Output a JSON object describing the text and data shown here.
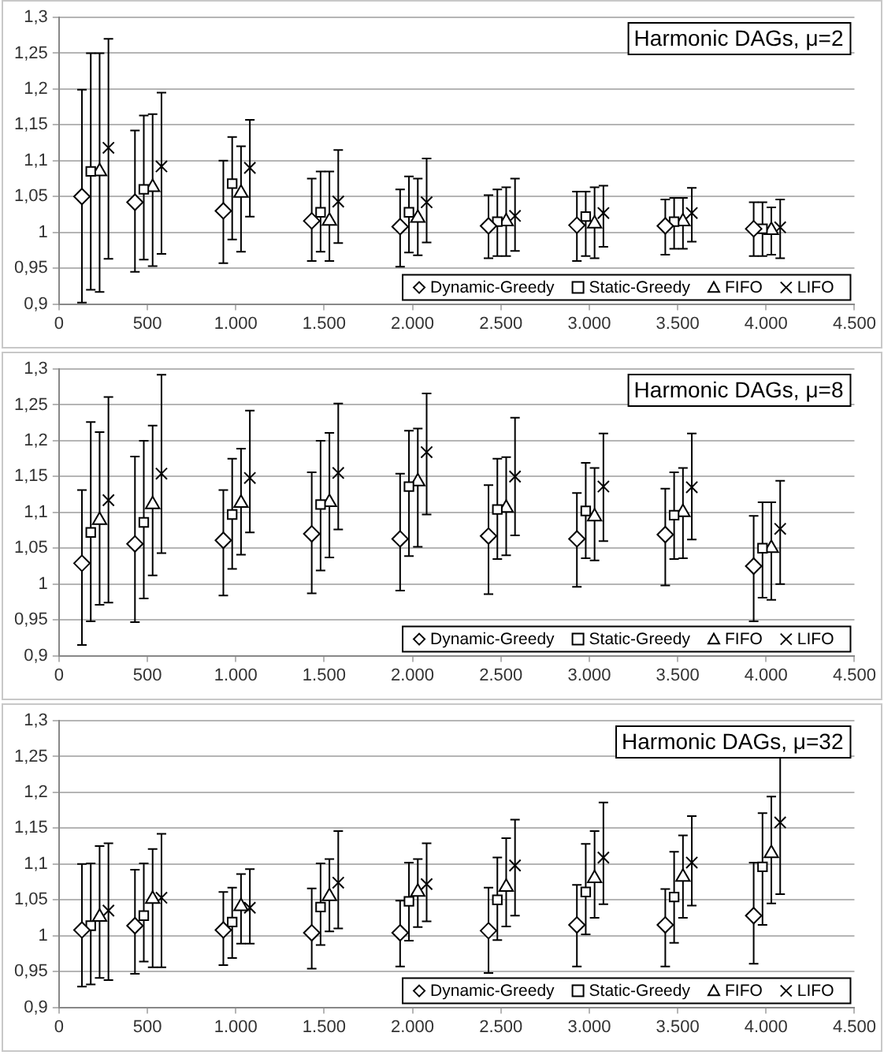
{
  "chart_data": [
    {
      "type": "scatter",
      "title": "Harmonic DAGs, μ=2",
      "xlim": [
        0,
        4500
      ],
      "xticks": [
        {
          "value": 0,
          "label": "0"
        },
        {
          "value": 500,
          "label": "500"
        },
        {
          "value": 1000,
          "label": "1.000"
        },
        {
          "value": 1500,
          "label": "1.500"
        },
        {
          "value": 2000,
          "label": "2.000"
        },
        {
          "value": 2500,
          "label": "2.500"
        },
        {
          "value": 3000,
          "label": "3.000"
        },
        {
          "value": 3500,
          "label": "3.500"
        },
        {
          "value": 4000,
          "label": "4.000"
        },
        {
          "value": 4500,
          "label": "4.500"
        }
      ],
      "ylim": [
        0.9,
        1.3
      ],
      "yticks": [
        {
          "value": 0.9,
          "label": "0,9"
        },
        {
          "value": 0.95,
          "label": "0,95"
        },
        {
          "value": 1,
          "label": "1"
        },
        {
          "value": 1.05,
          "label": "1,05"
        },
        {
          "value": 1.1,
          "label": "1,1"
        },
        {
          "value": 1.15,
          "label": "1,15"
        },
        {
          "value": 1.2,
          "label": "1,2"
        },
        {
          "value": 1.25,
          "label": "1,25"
        },
        {
          "value": 1.3,
          "label": "1,3"
        }
      ],
      "grid": "y",
      "legend": "bottom right",
      "series": [
        {
          "name": "Dynamic-Greedy",
          "color": "#000000",
          "marker": "diamond",
          "x": [
            130,
            430,
            930,
            1430,
            1930,
            2430,
            2930,
            3430,
            3930
          ],
          "values": [
            1.05,
            1.042,
            1.03,
            1.016,
            1.008,
            1.009,
            1.01,
            1.009,
            1.005
          ],
          "errors": [
            [
              0.902,
              1.199
            ],
            [
              0.945,
              1.142
            ],
            [
              0.957,
              1.1
            ],
            [
              0.96,
              1.075
            ],
            [
              0.952,
              1.06
            ],
            [
              0.964,
              1.052
            ],
            [
              0.96,
              1.057
            ],
            [
              0.969,
              1.046
            ],
            [
              0.967,
              1.042
            ]
          ]
        },
        {
          "name": "Static-Greedy",
          "color": "#000000",
          "marker": "square",
          "x": [
            180,
            480,
            980,
            1480,
            1980,
            2480,
            2980,
            3480,
            3980
          ],
          "values": [
            1.085,
            1.06,
            1.068,
            1.028,
            1.028,
            1.015,
            1.022,
            1.015,
            1.005
          ],
          "errors": [
            [
              0.92,
              1.25
            ],
            [
              0.962,
              1.163
            ],
            [
              0.99,
              1.133
            ],
            [
              0.973,
              1.085
            ],
            [
              0.972,
              1.078
            ],
            [
              0.967,
              1.06
            ],
            [
              0.967,
              1.057
            ],
            [
              0.977,
              1.048
            ],
            [
              0.967,
              1.042
            ]
          ]
        },
        {
          "name": "FIFO",
          "color": "#000000",
          "marker": "triangle",
          "x": [
            230,
            530,
            1030,
            1530,
            2030,
            2530,
            3030,
            3530,
            4030
          ],
          "values": [
            1.085,
            1.063,
            1.055,
            1.016,
            1.02,
            1.015,
            1.012,
            1.015,
            1.003
          ],
          "errors": [
            [
              0.917,
              1.25
            ],
            [
              0.953,
              1.165
            ],
            [
              0.973,
              1.12
            ],
            [
              0.96,
              1.085
            ],
            [
              0.968,
              1.075
            ],
            [
              0.967,
              1.063
            ],
            [
              0.964,
              1.063
            ],
            [
              0.977,
              1.048
            ],
            [
              0.969,
              1.035
            ]
          ]
        },
        {
          "name": "LIFO",
          "color": "#000000",
          "marker": "cross",
          "x": [
            280,
            580,
            1080,
            1580,
            2080,
            2580,
            3080,
            3580,
            4080
          ],
          "values": [
            1.118,
            1.092,
            1.09,
            1.043,
            1.042,
            1.023,
            1.027,
            1.027,
            1.007
          ],
          "errors": [
            [
              0.963,
              1.27
            ],
            [
              0.97,
              1.195
            ],
            [
              1.022,
              1.157
            ],
            [
              0.985,
              1.115
            ],
            [
              0.986,
              1.103
            ],
            [
              0.974,
              1.075
            ],
            [
              0.98,
              1.065
            ],
            [
              0.987,
              1.062
            ],
            [
              0.964,
              1.046
            ]
          ]
        }
      ]
    },
    {
      "type": "scatter",
      "title": "Harmonic DAGs, μ=8",
      "xlim": [
        0,
        4500
      ],
      "xticks": [
        {
          "value": 0,
          "label": "0"
        },
        {
          "value": 500,
          "label": "500"
        },
        {
          "value": 1000,
          "label": "1.000"
        },
        {
          "value": 1500,
          "label": "1.500"
        },
        {
          "value": 2000,
          "label": "2.000"
        },
        {
          "value": 2500,
          "label": "2.500"
        },
        {
          "value": 3000,
          "label": "3.000"
        },
        {
          "value": 3500,
          "label": "3.500"
        },
        {
          "value": 4000,
          "label": "4.000"
        },
        {
          "value": 4500,
          "label": "4.500"
        }
      ],
      "ylim": [
        0.9,
        1.3
      ],
      "yticks": [
        {
          "value": 0.9,
          "label": "0,9"
        },
        {
          "value": 0.95,
          "label": "0,95"
        },
        {
          "value": 1,
          "label": "1"
        },
        {
          "value": 1.05,
          "label": "1,05"
        },
        {
          "value": 1.1,
          "label": "1,1"
        },
        {
          "value": 1.15,
          "label": "1,15"
        },
        {
          "value": 1.2,
          "label": "1,2"
        },
        {
          "value": 1.25,
          "label": "1,25"
        },
        {
          "value": 1.3,
          "label": "1,3"
        }
      ],
      "grid": "y",
      "legend": "bottom right",
      "series": [
        {
          "name": "Dynamic-Greedy",
          "color": "#000000",
          "marker": "diamond",
          "x": [
            130,
            430,
            930,
            1430,
            1930,
            2430,
            2930,
            3430,
            3930
          ],
          "values": [
            1.029,
            1.056,
            1.061,
            1.07,
            1.063,
            1.067,
            1.063,
            1.069,
            1.025
          ],
          "errors": [
            [
              0.915,
              1.131
            ],
            [
              0.947,
              1.178
            ],
            [
              0.984,
              1.131
            ],
            [
              0.987,
              1.156
            ],
            [
              0.991,
              1.154
            ],
            [
              0.986,
              1.138
            ],
            [
              0.996,
              1.127
            ],
            [
              0.998,
              1.133
            ],
            [
              0.948,
              1.095
            ]
          ]
        },
        {
          "name": "Static-Greedy",
          "color": "#000000",
          "marker": "square",
          "x": [
            180,
            480,
            980,
            1480,
            1980,
            2480,
            2980,
            3480,
            3980
          ],
          "values": [
            1.072,
            1.086,
            1.097,
            1.111,
            1.136,
            1.104,
            1.102,
            1.096,
            1.05
          ],
          "errors": [
            [
              0.948,
              1.226
            ],
            [
              0.98,
              1.2
            ],
            [
              1.021,
              1.175
            ],
            [
              1.019,
              1.2
            ],
            [
              1.039,
              1.214
            ],
            [
              1.035,
              1.175
            ],
            [
              1.036,
              1.169
            ],
            [
              1.035,
              1.156
            ],
            [
              0.981,
              1.114
            ]
          ]
        },
        {
          "name": "FIFO",
          "color": "#000000",
          "marker": "triangle",
          "x": [
            230,
            530,
            1030,
            1530,
            2030,
            2530,
            3030,
            3530,
            4030
          ],
          "values": [
            1.089,
            1.111,
            1.113,
            1.114,
            1.143,
            1.106,
            1.094,
            1.1,
            1.05
          ],
          "errors": [
            [
              0.971,
              1.212
            ],
            [
              1.012,
              1.221
            ],
            [
              1.041,
              1.189
            ],
            [
              1.037,
              1.211
            ],
            [
              1.052,
              1.217
            ],
            [
              1.04,
              1.177
            ],
            [
              1.033,
              1.162
            ],
            [
              1.036,
              1.162
            ],
            [
              0.978,
              1.114
            ]
          ]
        },
        {
          "name": "LIFO",
          "color": "#000000",
          "marker": "cross",
          "x": [
            280,
            580,
            1080,
            1580,
            2080,
            2580,
            3080,
            3580,
            4080
          ],
          "values": [
            1.117,
            1.154,
            1.148,
            1.155,
            1.184,
            1.15,
            1.136,
            1.135,
            1.077
          ],
          "errors": [
            [
              0.974,
              1.261
            ],
            [
              1.043,
              1.292
            ],
            [
              1.072,
              1.242
            ],
            [
              1.076,
              1.252
            ],
            [
              1.097,
              1.266
            ],
            [
              1.068,
              1.232
            ],
            [
              1.06,
              1.21
            ],
            [
              1.062,
              1.21
            ],
            [
              1.0,
              1.144
            ]
          ]
        }
      ]
    },
    {
      "type": "scatter",
      "title": "Harmonic DAGs, μ=32",
      "xlim": [
        0,
        4500
      ],
      "xticks": [
        {
          "value": 0,
          "label": "0"
        },
        {
          "value": 500,
          "label": "500"
        },
        {
          "value": 1000,
          "label": "1.000"
        },
        {
          "value": 1500,
          "label": "1.500"
        },
        {
          "value": 2000,
          "label": "2.000"
        },
        {
          "value": 2500,
          "label": "2.500"
        },
        {
          "value": 3000,
          "label": "3.000"
        },
        {
          "value": 3500,
          "label": "3.500"
        },
        {
          "value": 4000,
          "label": "4.000"
        },
        {
          "value": 4500,
          "label": "4.500"
        }
      ],
      "ylim": [
        0.9,
        1.3
      ],
      "yticks": [
        {
          "value": 0.9,
          "label": "0,9"
        },
        {
          "value": 0.95,
          "label": "0,95"
        },
        {
          "value": 1,
          "label": "1"
        },
        {
          "value": 1.05,
          "label": "1,05"
        },
        {
          "value": 1.1,
          "label": "1,1"
        },
        {
          "value": 1.15,
          "label": "1,15"
        },
        {
          "value": 1.2,
          "label": "1,2"
        },
        {
          "value": 1.25,
          "label": "1,25"
        },
        {
          "value": 1.3,
          "label": "1,3"
        }
      ],
      "grid": "y",
      "legend": "bottom right",
      "series": [
        {
          "name": "Dynamic-Greedy",
          "color": "#000000",
          "marker": "diamond",
          "x": [
            130,
            430,
            930,
            1430,
            1930,
            2430,
            2930,
            3430,
            3930
          ],
          "values": [
            1.008,
            1.014,
            1.008,
            1.004,
            1.004,
            1.007,
            1.015,
            1.015,
            1.028
          ],
          "errors": [
            [
              0.929,
              1.1
            ],
            [
              0.947,
              1.092
            ],
            [
              0.959,
              1.061
            ],
            [
              0.954,
              1.066
            ],
            [
              0.957,
              1.049
            ],
            [
              0.948,
              1.067
            ],
            [
              0.957,
              1.071
            ],
            [
              0.957,
              1.065
            ],
            [
              0.961,
              1.102
            ]
          ]
        },
        {
          "name": "Static-Greedy",
          "color": "#000000",
          "marker": "square",
          "x": [
            180,
            480,
            980,
            1480,
            1980,
            2480,
            2980,
            3480,
            3980
          ],
          "values": [
            1.014,
            1.028,
            1.019,
            1.04,
            1.048,
            1.05,
            1.061,
            1.054,
            1.096
          ],
          "errors": [
            [
              0.932,
              1.101
            ],
            [
              0.964,
              1.101
            ],
            [
              0.969,
              1.067
            ],
            [
              0.987,
              1.101
            ],
            [
              0.993,
              1.102
            ],
            [
              0.994,
              1.109
            ],
            [
              1.002,
              1.128
            ],
            [
              0.99,
              1.117
            ],
            [
              1.015,
              1.171
            ]
          ]
        },
        {
          "name": "FIFO",
          "color": "#000000",
          "marker": "triangle",
          "x": [
            230,
            530,
            1030,
            1530,
            2030,
            2530,
            3030,
            3530,
            4030
          ],
          "values": [
            1.026,
            1.051,
            1.041,
            1.055,
            1.061,
            1.068,
            1.08,
            1.082,
            1.115
          ],
          "errors": [
            [
              0.941,
              1.125
            ],
            [
              0.956,
              1.121
            ],
            [
              0.989,
              1.086
            ],
            [
              1.006,
              1.107
            ],
            [
              1.012,
              1.107
            ],
            [
              1.013,
              1.136
            ],
            [
              1.025,
              1.146
            ],
            [
              1.025,
              1.14
            ],
            [
              1.045,
              1.194
            ]
          ]
        },
        {
          "name": "LIFO",
          "color": "#000000",
          "marker": "cross",
          "x": [
            280,
            580,
            1080,
            1580,
            2080,
            2580,
            3080,
            3580,
            4080
          ],
          "values": [
            1.035,
            1.053,
            1.039,
            1.074,
            1.072,
            1.098,
            1.109,
            1.102,
            1.158
          ],
          "errors": [
            [
              0.938,
              1.129
            ],
            [
              0.956,
              1.142
            ],
            [
              0.989,
              1.093
            ],
            [
              1.01,
              1.146
            ],
            [
              1.02,
              1.129
            ],
            [
              1.028,
              1.162
            ],
            [
              1.044,
              1.186
            ],
            [
              1.042,
              1.167
            ],
            [
              1.058,
              1.25
            ]
          ]
        }
      ]
    }
  ]
}
